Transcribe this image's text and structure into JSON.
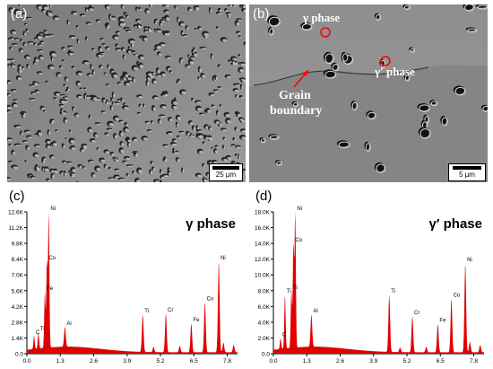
{
  "panels": {
    "a": {
      "label": "(a)",
      "scale_text": "25 μm"
    },
    "b": {
      "label": "(b)",
      "scale_text": "5 μm",
      "annotations": {
        "gamma": "γ  phase",
        "gamma_prime": "γ′ phase",
        "grain1": "Grain",
        "grain2": "boundary"
      }
    },
    "c": {
      "label": "(c)",
      "title": "γ  phase"
    },
    "d": {
      "label": "(d)",
      "title": "γ′  phase"
    }
  },
  "colors": {
    "spectrum": "#e00000",
    "annotation": "#ff0000"
  },
  "chart_data": [
    {
      "type": "area",
      "title": "γ  phase",
      "x_ticks": [
        "0.0",
        "1.3",
        "2.6",
        "3.9",
        "5.2",
        "6.5",
        "7.8"
      ],
      "y_ticks": [
        "0.0",
        "1.4K",
        "2.8K",
        "4.2K",
        "5.6K",
        "7.0K",
        "8.4K",
        "9.8K",
        "11.2K",
        "12.6K"
      ],
      "xlim": [
        0,
        8.2
      ],
      "ylim": [
        0,
        12600
      ],
      "peaks": [
        {
          "x": 0.28,
          "y": 1600,
          "label": "C"
        },
        {
          "x": 0.45,
          "y": 1900,
          "label": "Ti"
        },
        {
          "x": 0.7,
          "y": 5500,
          "label": "Fe"
        },
        {
          "x": 0.78,
          "y": 8200,
          "label": "Co"
        },
        {
          "x": 0.85,
          "y": 12600,
          "label": "Ni"
        },
        {
          "x": 1.48,
          "y": 2400,
          "label": "Al"
        },
        {
          "x": 4.51,
          "y": 3500,
          "label": "Ti"
        },
        {
          "x": 5.41,
          "y": 3600,
          "label": "Cr"
        },
        {
          "x": 6.4,
          "y": 2700,
          "label": "Fe"
        },
        {
          "x": 6.93,
          "y": 4600,
          "label": "Co"
        },
        {
          "x": 7.47,
          "y": 8200,
          "label": "Ni"
        }
      ],
      "minor_peaks": [
        {
          "x": 4.93,
          "y": 600
        },
        {
          "x": 5.95,
          "y": 700
        },
        {
          "x": 7.65,
          "y": 1000
        },
        {
          "x": 8.05,
          "y": 800
        }
      ]
    },
    {
      "type": "area",
      "title": "γ′  phase",
      "x_ticks": [
        "0.0",
        "1.3",
        "2.6",
        "3.9",
        "5.2",
        "6.5",
        "7.8"
      ],
      "y_ticks": [
        "0.0",
        "2.0K",
        "4.0K",
        "6.0K",
        "8.0K",
        "10.0K",
        "12.0K",
        "14.0K",
        "16.0K",
        "18.0K"
      ],
      "xlim": [
        0,
        8.2
      ],
      "ylim": [
        0,
        18000
      ],
      "peaks": [
        {
          "x": 0.28,
          "y": 2000,
          "label": "C"
        },
        {
          "x": 0.45,
          "y": 7500,
          "label": "Ti"
        },
        {
          "x": 0.7,
          "y": 8000,
          "label": "Ti"
        },
        {
          "x": 0.78,
          "y": 14000,
          "label": "Co"
        },
        {
          "x": 0.85,
          "y": 18000,
          "label": "Ni"
        },
        {
          "x": 1.48,
          "y": 5000,
          "label": "Al"
        },
        {
          "x": 4.51,
          "y": 7500,
          "label": "Ti"
        },
        {
          "x": 5.41,
          "y": 4800,
          "label": "Cr"
        },
        {
          "x": 6.4,
          "y": 3800,
          "label": "Fe"
        },
        {
          "x": 6.93,
          "y": 7000,
          "label": "Co"
        },
        {
          "x": 7.47,
          "y": 11500,
          "label": "Ni"
        }
      ],
      "minor_peaks": [
        {
          "x": 4.93,
          "y": 800
        },
        {
          "x": 5.95,
          "y": 900
        },
        {
          "x": 7.65,
          "y": 1500
        },
        {
          "x": 8.05,
          "y": 1100
        }
      ]
    }
  ]
}
